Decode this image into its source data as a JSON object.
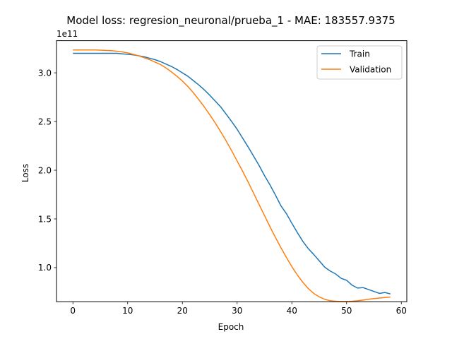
{
  "chart_data": {
    "type": "line",
    "title": "Model loss: regresion_neuronal/prueba_1 - MAE: 183557.9375",
    "xlabel": "Epoch",
    "ylabel": "Loss",
    "y_offset_label": "1e11",
    "xlim": [
      -3,
      61
    ],
    "ylim": [
      0.65,
      3.33
    ],
    "x_ticks": [
      0,
      10,
      20,
      30,
      40,
      50,
      60
    ],
    "x_tick_labels": [
      "0",
      "10",
      "20",
      "30",
      "40",
      "50",
      "60"
    ],
    "y_ticks": [
      1.0,
      1.5,
      2.0,
      2.5,
      3.0
    ],
    "y_tick_labels": [
      "1.0",
      "1.5",
      "2.0",
      "2.5",
      "3.0"
    ],
    "grid": false,
    "legend_position": "upper-right",
    "x": [
      0,
      1,
      2,
      3,
      4,
      5,
      6,
      7,
      8,
      9,
      10,
      11,
      12,
      13,
      14,
      15,
      16,
      17,
      18,
      19,
      20,
      21,
      22,
      23,
      24,
      25,
      26,
      27,
      28,
      29,
      30,
      31,
      32,
      33,
      34,
      35,
      36,
      37,
      38,
      39,
      40,
      41,
      42,
      43,
      44,
      45,
      46,
      47,
      48,
      49,
      50,
      51,
      52,
      53,
      54,
      55,
      56,
      57,
      58
    ],
    "series": [
      {
        "name": "Train",
        "color": "#1f77b4",
        "values": [
          3.2,
          3.2,
          3.2,
          3.2,
          3.2,
          3.2,
          3.2,
          3.2,
          3.2,
          3.195,
          3.19,
          3.185,
          3.175,
          3.165,
          3.15,
          3.135,
          3.115,
          3.09,
          3.065,
          3.035,
          3.0,
          2.965,
          2.92,
          2.875,
          2.825,
          2.77,
          2.71,
          2.65,
          2.575,
          2.5,
          2.42,
          2.33,
          2.24,
          2.145,
          2.05,
          1.945,
          1.85,
          1.745,
          1.635,
          1.555,
          1.455,
          1.36,
          1.27,
          1.195,
          1.135,
          1.07,
          1.005,
          0.965,
          0.935,
          0.89,
          0.87,
          0.82,
          0.79,
          0.795,
          0.775,
          0.755,
          0.735,
          0.745,
          0.73
        ]
      },
      {
        "name": "Validation",
        "color": "#ff7f0e",
        "values": [
          3.235,
          3.235,
          3.235,
          3.235,
          3.235,
          3.233,
          3.23,
          3.227,
          3.222,
          3.215,
          3.205,
          3.19,
          3.175,
          3.155,
          3.135,
          3.11,
          3.085,
          3.05,
          3.01,
          2.965,
          2.915,
          2.86,
          2.795,
          2.725,
          2.65,
          2.57,
          2.485,
          2.395,
          2.3,
          2.2,
          2.095,
          1.99,
          1.88,
          1.765,
          1.65,
          1.535,
          1.42,
          1.31,
          1.205,
          1.105,
          1.01,
          0.925,
          0.85,
          0.785,
          0.735,
          0.7,
          0.675,
          0.66,
          0.655,
          0.652,
          0.652,
          0.655,
          0.66,
          0.667,
          0.675,
          0.682,
          0.688,
          0.693,
          0.698
        ]
      }
    ]
  }
}
